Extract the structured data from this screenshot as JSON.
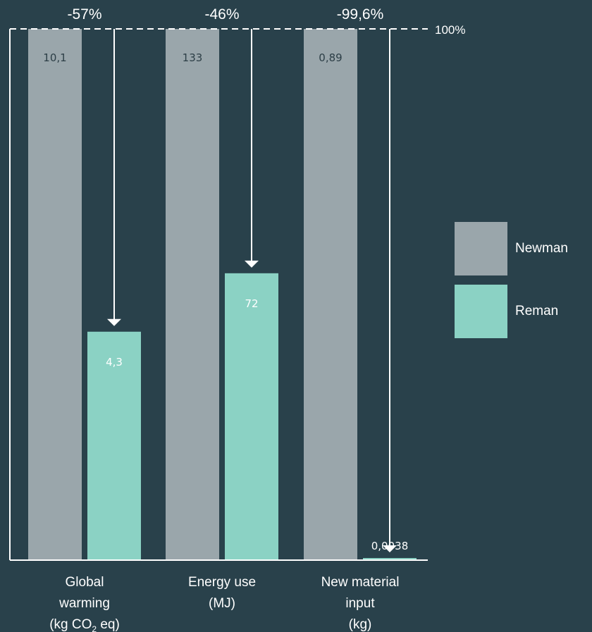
{
  "chart_data": {
    "type": "bar",
    "categories": [
      {
        "lines": [
          "Global",
          "warming",
          "(kg CO",
          "2",
          " eq)"
        ]
      },
      {
        "lines": [
          "Energy use",
          "(MJ)"
        ]
      },
      {
        "lines": [
          "New material",
          "input",
          "(kg)"
        ]
      }
    ],
    "series": [
      {
        "name": "Newman",
        "color": "#9aa6ab",
        "values_pct": [
          100,
          100,
          100
        ],
        "labels": [
          "10,1",
          "133",
          "0,89"
        ]
      },
      {
        "name": "Reman",
        "color": "#8bd2c4",
        "values_pct": [
          43,
          54,
          0.4
        ],
        "labels": [
          "4,3",
          "72",
          "0,0038"
        ]
      }
    ],
    "changes": [
      "-57%",
      "-46%",
      "-99,6%"
    ],
    "reference_label": "100%",
    "ylim": [
      0,
      100
    ]
  }
}
